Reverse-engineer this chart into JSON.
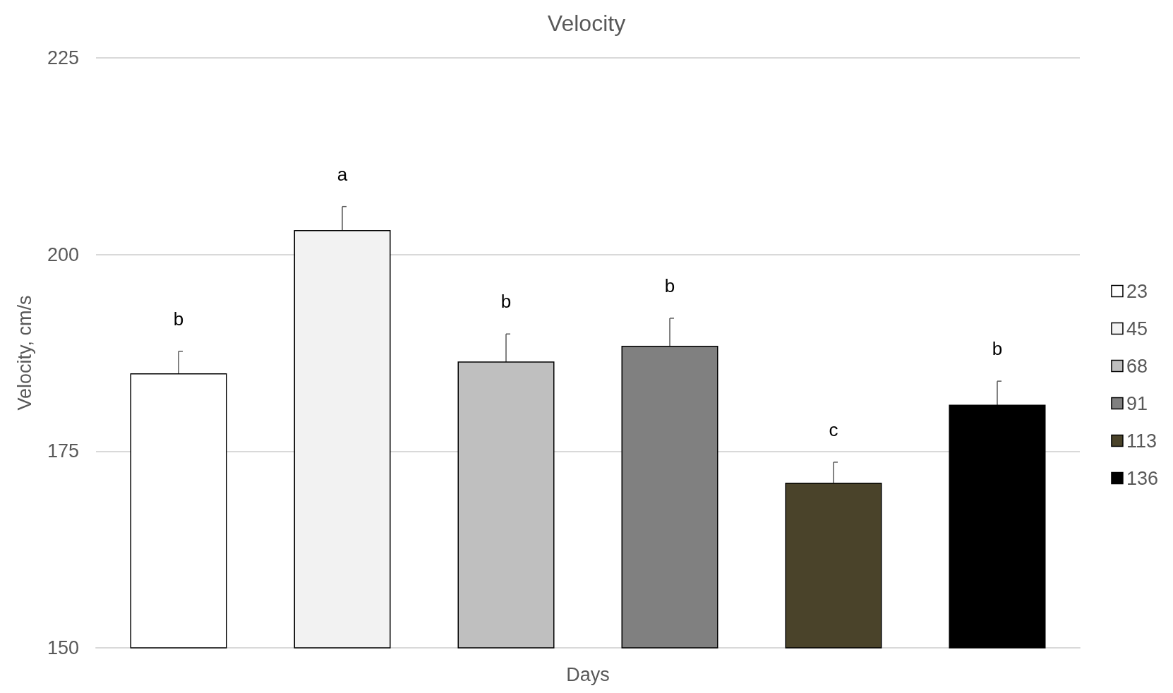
{
  "chart_data": {
    "type": "bar",
    "title": "Velocity",
    "xlabel": "Days",
    "ylabel": "Velocity, cm/s",
    "categories": [
      null
    ],
    "series": [
      {
        "name": "23",
        "color": "#ffffff",
        "values": [
          184.9
        ],
        "errors": [
          2.8
        ]
      },
      {
        "name": "45",
        "color": "#f2f2f2",
        "values": [
          203.1
        ],
        "errors": [
          3
        ]
      },
      {
        "name": "68",
        "color": "#bfbfbf",
        "values": [
          186.4
        ],
        "errors": [
          3.5
        ]
      },
      {
        "name": "91",
        "color": "#808080",
        "values": [
          188.4
        ],
        "errors": [
          3.5
        ]
      },
      {
        "name": "113",
        "color": "#4a432a",
        "values": [
          171
        ],
        "errors": [
          2.6
        ]
      },
      {
        "name": "136",
        "color": "#000000",
        "values": [
          180.9
        ],
        "errors": [
          3
        ]
      }
    ],
    "annotations": [
      "b",
      "a",
      "b",
      "b",
      "c",
      "b"
    ],
    "ylim": [
      150,
      225
    ],
    "yticks": [
      150,
      175,
      200,
      225
    ],
    "grid": "y",
    "legend": "right"
  }
}
